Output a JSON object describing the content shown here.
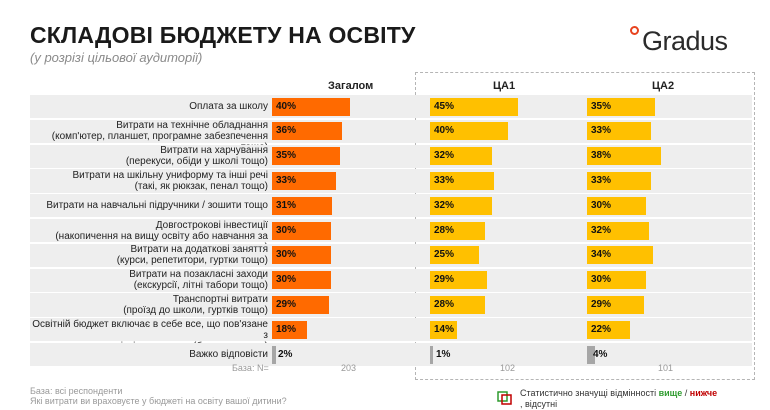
{
  "header": {
    "title": "СКЛАДОВІ БЮДЖЕТУ НА ОСВІТУ",
    "subtitle": "(у розрізі цільової аудиторії)",
    "logo_text": "Gradus"
  },
  "colors": {
    "total": "#ff6a00",
    "ta1": "#ffc000",
    "ta2": "#ffc000",
    "small": "#a6a6a6",
    "row_bg": "#eeeeee",
    "higher": "#2e9b2e",
    "lower": "#c00000"
  },
  "chart_data": {
    "type": "bar",
    "orientation": "horizontal",
    "categories": [
      "Оплата за школу",
      "Витрати на технічне обладнання (комп'ютер, планшет, програмне забезпечення тощо)",
      "Витрати на харчування (перекуси, обіди у школі тощо)",
      "Витрати на шкільну униформу та інші речі (такі, як рюкзак, пенал тощо)",
      "Витрати на навчальні підручники / зошити тощо",
      "Довгострокові інвестиції (накопичення на вищу освіту або навчання за кордоном)",
      "Витрати на додаткові заняття (курси, репетитори, гуртки тощо)",
      "Витрати на позакласні заходи (екскурсії, літні табори тощо)",
      "Транспортні витрати (проїзд до школи, гуртків тощо)",
      "Освітній бюджет включає в себе все, що пов'язане з освітнім процесом (без виключень)",
      "Важко відповісти"
    ],
    "series": [
      {
        "name": "Загалом",
        "values": [
          40,
          36,
          35,
          33,
          31,
          30,
          30,
          30,
          29,
          18,
          2
        ],
        "base": "203"
      },
      {
        "name": "ЦА1",
        "values": [
          45,
          40,
          32,
          33,
          32,
          28,
          25,
          29,
          28,
          14,
          1
        ],
        "base": "102"
      },
      {
        "name": "ЦА2",
        "values": [
          35,
          33,
          38,
          33,
          30,
          32,
          34,
          30,
          29,
          22,
          4
        ],
        "base": "101"
      }
    ],
    "unit": "%"
  },
  "labels": {
    "rows": [
      [
        "Оплата за школу"
      ],
      [
        "Витрати на технічне обладнання",
        "(комп'ютер, планшет, програмне забезпечення тощо)"
      ],
      [
        "Витрати на харчування",
        "(перекуси, обіди у школі тощо)"
      ],
      [
        "Витрати на шкільну униформу та інші речі",
        "(такі, як рюкзак, пенал тощо)"
      ],
      [
        "Витрати на навчальні підручники / зошити тощо"
      ],
      [
        "Довгострокові інвестиції",
        "(накопичення на вищу освіту або навчання за кордоном)"
      ],
      [
        "Витрати на додаткові заняття",
        "(курси, репетитори, гуртки тощо)"
      ],
      [
        "Витрати на позакласні заходи",
        "(екскурсії, літні табори тощо)"
      ],
      [
        "Транспортні витрати",
        "(проїзд до школи, гуртків тощо)"
      ],
      [
        "Освітній бюджет включає в себе все, що пов'язане з",
        "освітнім процесом (без виключень)"
      ],
      [
        "Важко відповісти"
      ]
    ]
  },
  "footer": {
    "base_label": "База: N=",
    "note1": "База: всі респонденти",
    "note2": "Які витрати ви враховуєте у бюджеті на освіту вашої дитини?",
    "legend_prefix": "Статистично значущі відмінності",
    "legend_higher": "вище",
    "legend_sep": " / ",
    "legend_lower": "нижче",
    "legend_suffix": ", відсутні"
  }
}
